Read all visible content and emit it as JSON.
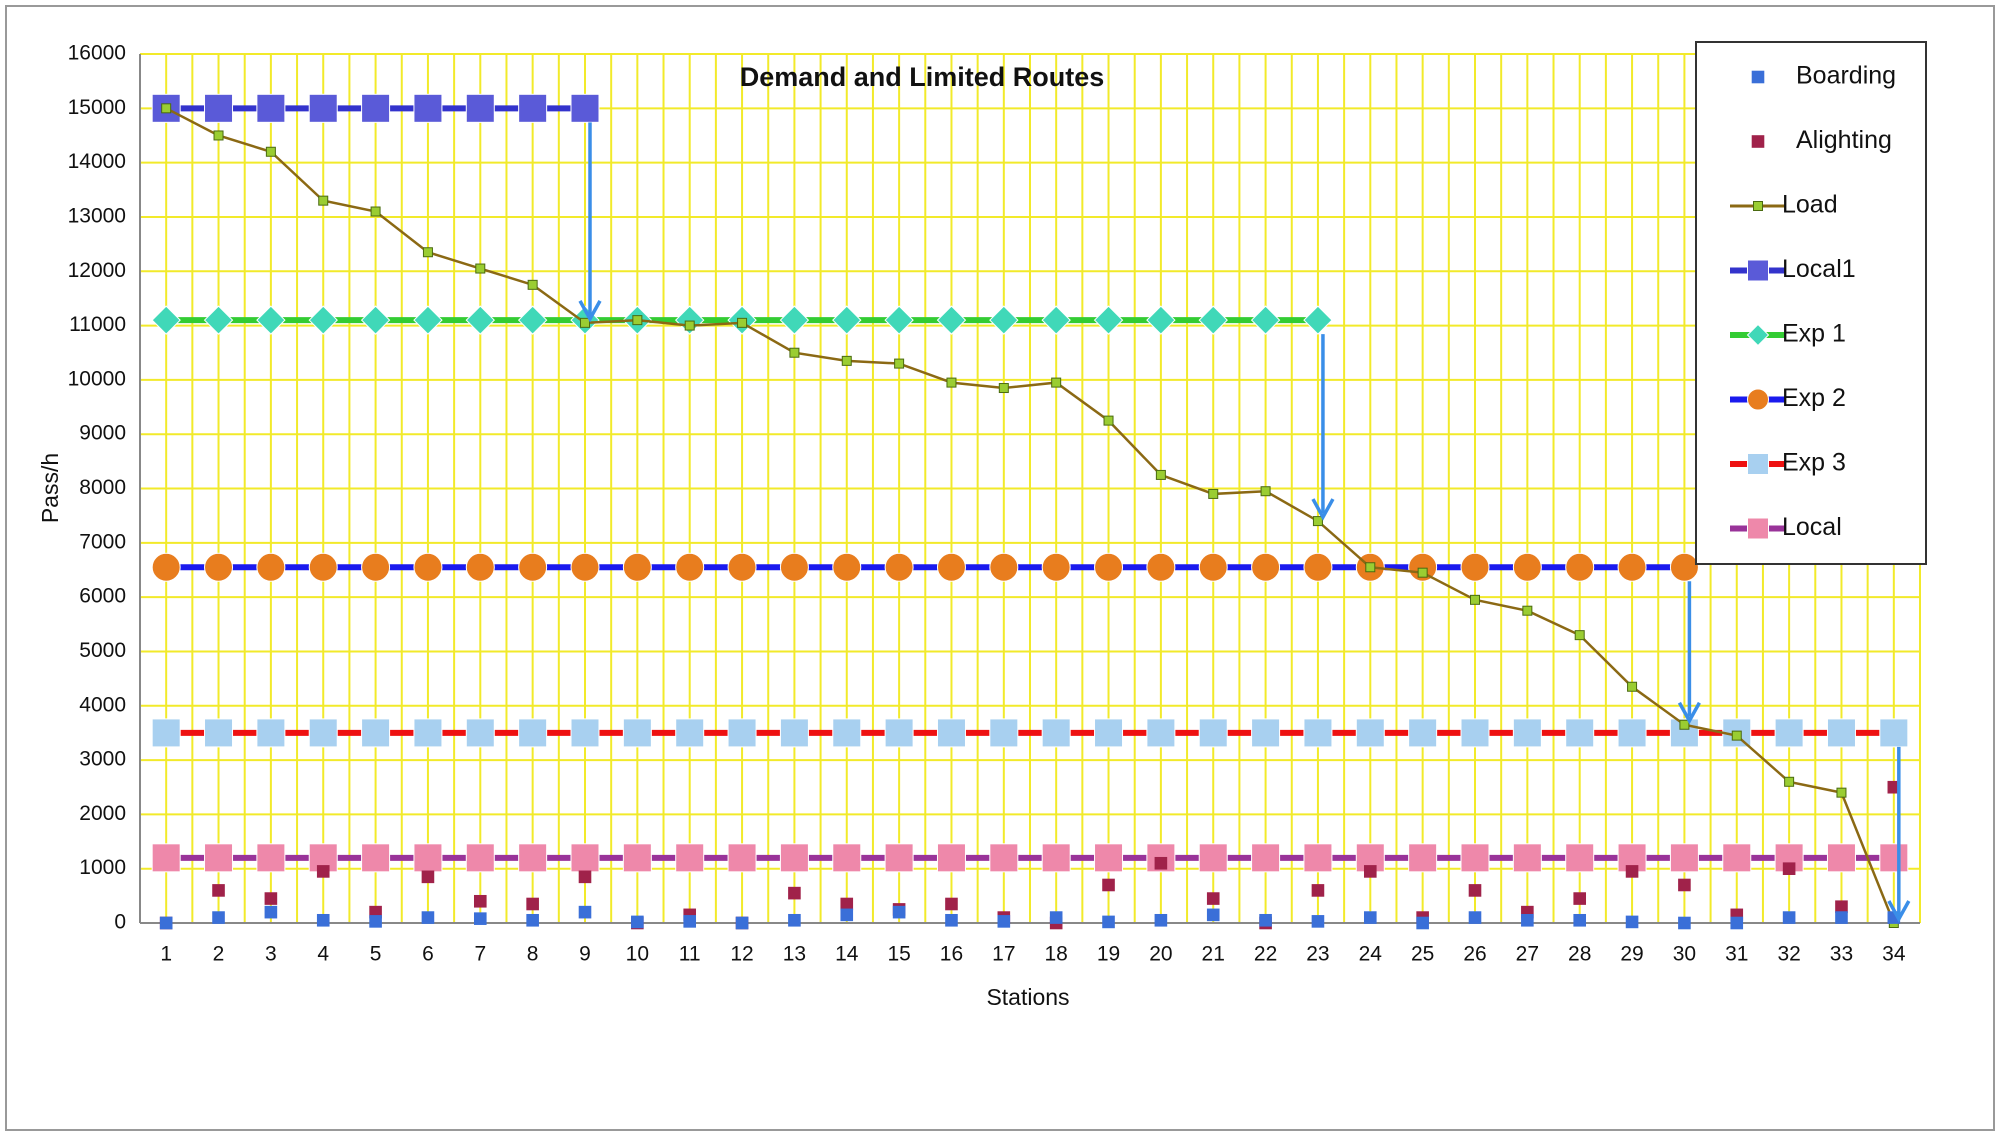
{
  "chart_data": {
    "type": "line",
    "title": "Demand and Limited Routes",
    "x_label": "Stations",
    "y_label": "Pass/h",
    "x": [
      1,
      2,
      3,
      4,
      5,
      6,
      7,
      8,
      9,
      10,
      11,
      12,
      13,
      14,
      15,
      16,
      17,
      18,
      19,
      20,
      21,
      22,
      23,
      24,
      25,
      26,
      27,
      28,
      29,
      30,
      31,
      32,
      33,
      34
    ],
    "xlim": [
      0.5,
      34.5
    ],
    "xticks": [
      1,
      2,
      3,
      4,
      5,
      6,
      7,
      8,
      9,
      10,
      11,
      12,
      13,
      14,
      15,
      16,
      17,
      18,
      19,
      20,
      21,
      22,
      23,
      24,
      25,
      26,
      27,
      28,
      29,
      30,
      31,
      32,
      33,
      34
    ],
    "ylim": [
      0,
      16000
    ],
    "yticks": [
      0,
      1000,
      2000,
      3000,
      4000,
      5000,
      6000,
      7000,
      8000,
      9000,
      10000,
      11000,
      12000,
      13000,
      14000,
      15000,
      16000
    ],
    "grid": true,
    "legend": "top-right",
    "series": [
      {
        "name": "Boarding",
        "color": "#3a6fd8",
        "line": false,
        "marker": "square",
        "values": [
          0,
          100,
          200,
          50,
          30,
          100,
          80,
          50,
          200,
          20,
          30,
          0,
          50,
          150,
          200,
          50,
          30,
          100,
          20,
          50,
          150,
          50,
          30,
          100,
          0,
          100,
          50,
          50,
          20,
          0,
          0,
          100,
          100,
          100
        ]
      },
      {
        "name": "Alighting",
        "color": "#a0224a",
        "line": false,
        "marker": "square",
        "values": [
          0,
          600,
          450,
          950,
          200,
          850,
          400,
          350,
          850,
          0,
          150,
          0,
          550,
          350,
          250,
          350,
          100,
          0,
          700,
          1100,
          450,
          0,
          600,
          950,
          100,
          600,
          200,
          450,
          950,
          700,
          150,
          1000,
          300,
          2500
        ]
      },
      {
        "name": "Load",
        "color": "#8b6914",
        "marker_color": "#9acd32",
        "line": true,
        "marker": "small-square",
        "values": [
          15000,
          14500,
          14200,
          13300,
          13100,
          12350,
          12050,
          11750,
          11050,
          11100,
          11000,
          11050,
          10500,
          10350,
          10300,
          9950,
          9850,
          9950,
          9250,
          8250,
          7900,
          7950,
          7400,
          6550,
          6450,
          5950,
          5750,
          5300,
          4350,
          3650,
          3450,
          2600,
          2400,
          0
        ]
      },
      {
        "name": "Local1",
        "color": "#3333cc",
        "marker_color": "#5a5ad8",
        "line": true,
        "marker": "square",
        "values": [
          15000,
          15000,
          15000,
          15000,
          15000,
          15000,
          15000,
          15000,
          15000,
          null,
          null,
          null,
          null,
          null,
          null,
          null,
          null,
          null,
          null,
          null,
          null,
          null,
          null,
          null,
          null,
          null,
          null,
          null,
          null,
          null,
          null,
          null,
          null,
          null
        ]
      },
      {
        "name": "Exp 1",
        "color": "#33cc33",
        "marker_color": "#40d8b8",
        "line": true,
        "marker": "diamond",
        "values": [
          11100,
          11100,
          11100,
          11100,
          11100,
          11100,
          11100,
          11100,
          11100,
          11100,
          11100,
          11100,
          11100,
          11100,
          11100,
          11100,
          11100,
          11100,
          11100,
          11100,
          11100,
          11100,
          11100,
          null,
          null,
          null,
          null,
          null,
          null,
          null,
          null,
          null,
          null,
          null
        ]
      },
      {
        "name": "Exp 2",
        "color": "#1a1aee",
        "marker_color": "#e87d1e",
        "line": true,
        "marker": "circle",
        "values": [
          6550,
          6550,
          6550,
          6550,
          6550,
          6550,
          6550,
          6550,
          6550,
          6550,
          6550,
          6550,
          6550,
          6550,
          6550,
          6550,
          6550,
          6550,
          6550,
          6550,
          6550,
          6550,
          6550,
          6550,
          6550,
          6550,
          6550,
          6550,
          6550,
          6550,
          null,
          null,
          null,
          null
        ]
      },
      {
        "name": "Exp 3",
        "color": "#ee1111",
        "marker_color": "#a8d0f0",
        "line": true,
        "marker": "square",
        "values": [
          3500,
          3500,
          3500,
          3500,
          3500,
          3500,
          3500,
          3500,
          3500,
          3500,
          3500,
          3500,
          3500,
          3500,
          3500,
          3500,
          3500,
          3500,
          3500,
          3500,
          3500,
          3500,
          3500,
          3500,
          3500,
          3500,
          3500,
          3500,
          3500,
          3500,
          3500,
          3500,
          3500,
          3500
        ]
      },
      {
        "name": "Local",
        "color": "#993399",
        "marker_color": "#ee88aa",
        "line": true,
        "marker": "square",
        "values": [
          1200,
          1200,
          1200,
          1200,
          1200,
          1200,
          1200,
          1200,
          1200,
          1200,
          1200,
          1200,
          1200,
          1200,
          1200,
          1200,
          1200,
          1200,
          1200,
          1200,
          1200,
          1200,
          1200,
          1200,
          1200,
          1200,
          1200,
          1200,
          1200,
          1200,
          1200,
          1200,
          1200,
          1200
        ]
      }
    ]
  }
}
